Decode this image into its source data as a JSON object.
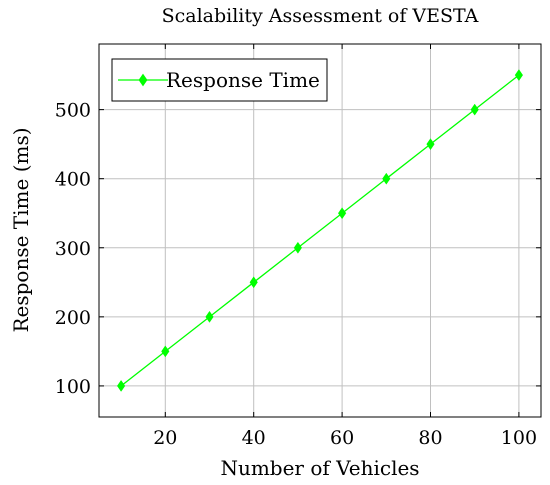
{
  "chart_data": {
    "type": "line",
    "title": "Scalability Assessment of VESTA",
    "xlabel": "Number of Vehicles",
    "ylabel": "Response Time (ms)",
    "xlim": [
      5,
      105
    ],
    "ylim": [
      55,
      595
    ],
    "xticks": [
      20,
      40,
      60,
      80,
      100
    ],
    "yticks": [
      100,
      200,
      300,
      400,
      500
    ],
    "grid": true,
    "legend_position": "top-left",
    "series": [
      {
        "name": "Response Time",
        "color": "#00ff00",
        "marker": "diamond",
        "x": [
          10,
          20,
          30,
          40,
          50,
          60,
          70,
          80,
          90,
          100
        ],
        "y": [
          100,
          150,
          200,
          250,
          300,
          350,
          400,
          450,
          500,
          550
        ]
      }
    ]
  }
}
